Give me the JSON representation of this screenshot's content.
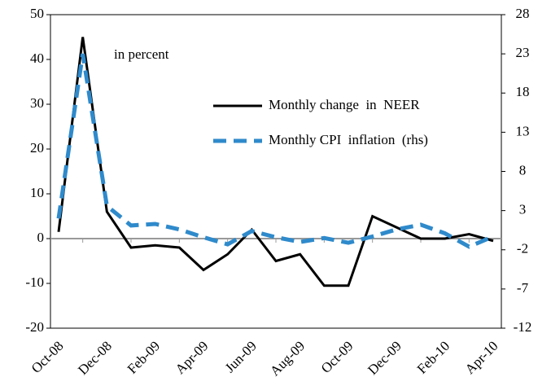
{
  "chart_data": {
    "type": "line",
    "annotations": [
      "in percent"
    ],
    "categories": [
      "Oct-08",
      null,
      "Dec-08",
      null,
      "Feb-09",
      null,
      "Apr-09",
      null,
      "Jun-09",
      null,
      "Aug-09",
      null,
      "Oct-09",
      null,
      "Dec-09",
      null,
      "Feb-10",
      null,
      "Apr-10"
    ],
    "series": [
      {
        "name": "Monthly change  in  NEER",
        "color": "#000000",
        "values": [
          1.5,
          45,
          6,
          -2,
          -1.5,
          -2,
          -7,
          -3.5,
          2,
          -5,
          -3.5,
          -10.5,
          -10.5,
          5,
          2.5,
          0,
          0,
          1,
          -0.5
        ]
      },
      {
        "name": "Monthly CPI  inflation  (rhs)",
        "color": "#2f8acb",
        "axis": "y2",
        "dashed": true,
        "values": [
          2,
          23,
          3.6,
          1.1,
          1.3,
          0.6,
          -0.4,
          -1.3,
          0.4,
          -0.4,
          -1,
          -0.5,
          -1.1,
          -0.3,
          0.6,
          1.2,
          0.1,
          -1.6,
          -0.3
        ]
      }
    ],
    "ylim": [
      -20,
      50
    ],
    "yticks": [
      -20,
      -10,
      0,
      10,
      20,
      30,
      40,
      50
    ],
    "y2lim": [
      -12,
      28
    ],
    "y2ticks": [
      -12,
      -7,
      -2,
      3,
      8,
      13,
      18,
      23,
      28
    ],
    "legend": "upper right"
  }
}
